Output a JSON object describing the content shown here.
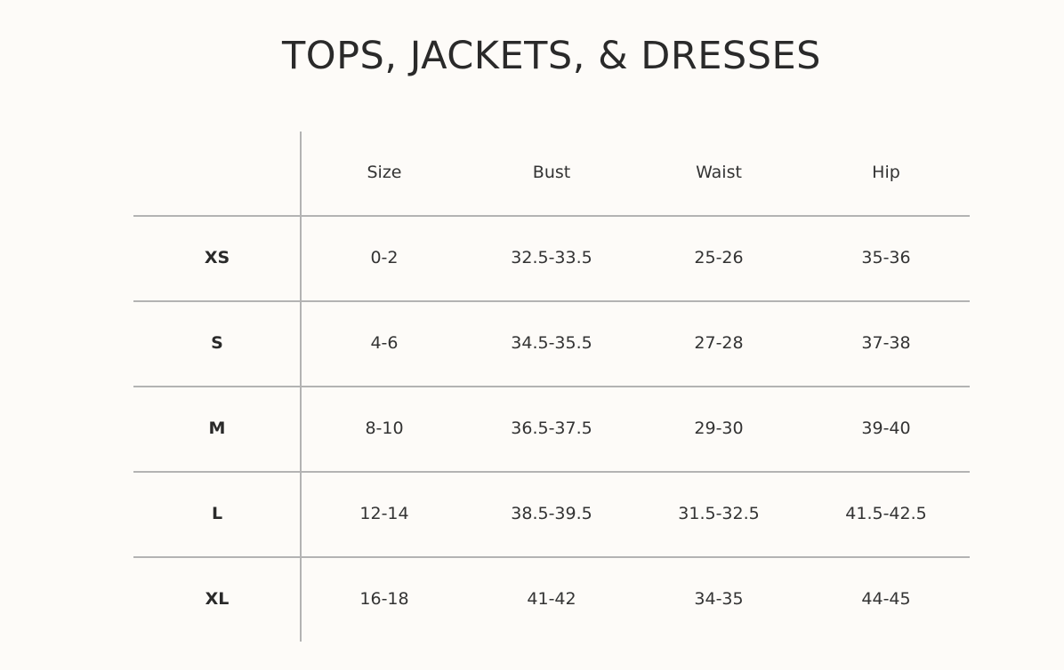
{
  "title": "TOPS, JACKETS, & DRESSES",
  "headers": [
    "",
    "Size",
    "Bust",
    "Waist",
    "Hip"
  ],
  "rows": [
    {
      "label": "XS",
      "cells": [
        "0-2",
        "32.5-33.5",
        "25-26",
        "35-36"
      ]
    },
    {
      "label": "S",
      "cells": [
        "4-6",
        "34.5-35.5",
        "27-28",
        "37-38"
      ]
    },
    {
      "label": "M",
      "cells": [
        "8-10",
        "36.5-37.5",
        "29-30",
        "39-40"
      ]
    },
    {
      "label": "L",
      "cells": [
        "12-14",
        "38.5-39.5",
        "31.5-32.5",
        "41.5-42.5"
      ]
    },
    {
      "label": "XL",
      "cells": [
        "16-18",
        "41-42",
        "34-35",
        "44-45"
      ]
    }
  ]
}
